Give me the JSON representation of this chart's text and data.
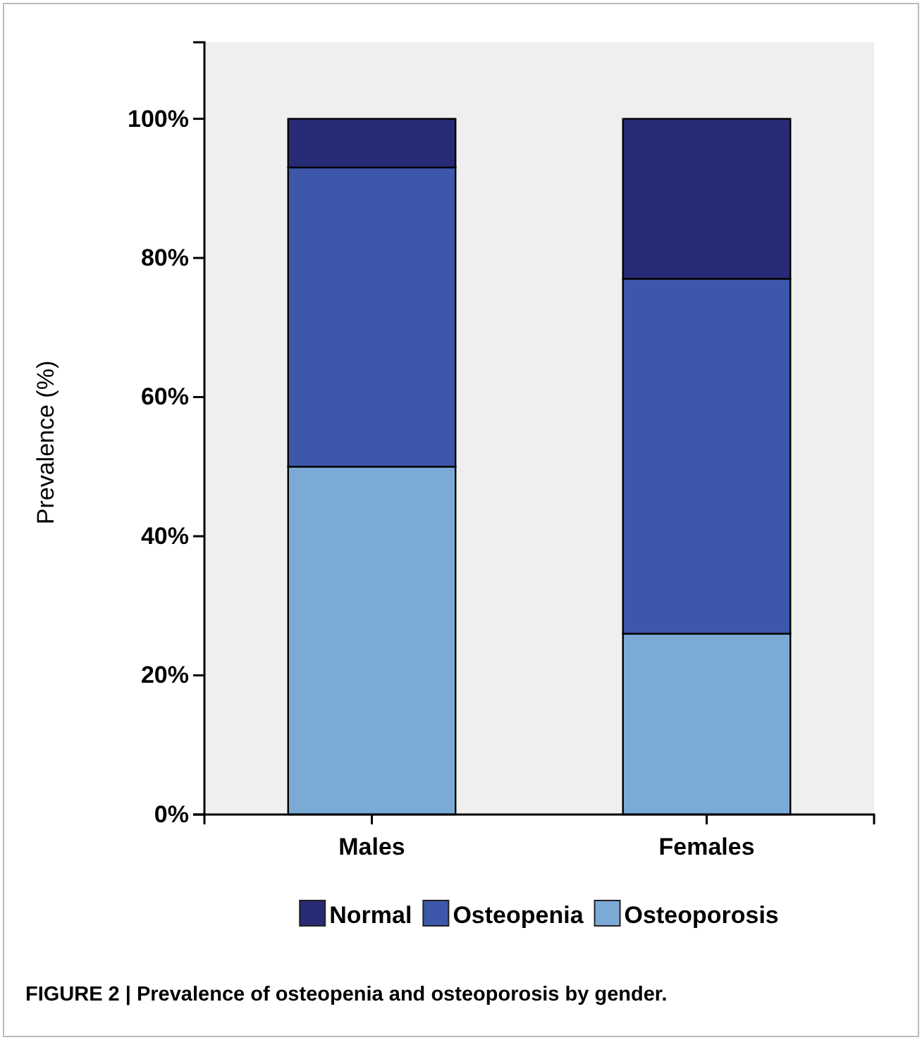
{
  "chart_data": {
    "type": "bar",
    "stacked": true,
    "ylabel": "Prevalence (%)",
    "categories": [
      "Males",
      "Females"
    ],
    "series": [
      {
        "name": "Osteoporosis",
        "color": "#7caad6",
        "values": [
          50,
          26
        ]
      },
      {
        "name": "Osteopenia",
        "color": "#3d57ab",
        "values": [
          43,
          51
        ]
      },
      {
        "name": "Normal",
        "color": "#272a74",
        "values": [
          7,
          23
        ]
      }
    ],
    "ylim": [
      0,
      111
    ],
    "yticks": [
      {
        "value": 0,
        "label": "0%"
      },
      {
        "value": 20,
        "label": "20%"
      },
      {
        "value": 40,
        "label": "40%"
      },
      {
        "value": 60,
        "label": "60%"
      },
      {
        "value": 80,
        "label": "80%"
      },
      {
        "value": 100,
        "label": "100%"
      }
    ],
    "legend": "bottom",
    "grid": false,
    "annotations": [
      "FIGURE 2 | Prevalence of osteopenia and osteoporosis by gender."
    ]
  }
}
